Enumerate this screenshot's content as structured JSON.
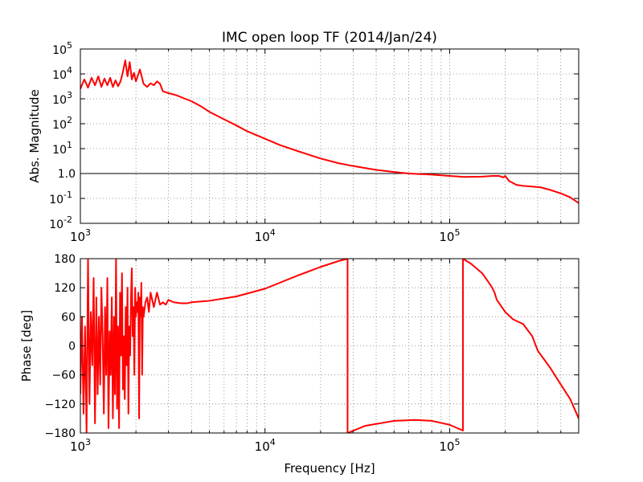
{
  "chart_data": [
    {
      "type": "line",
      "title": "IMC open loop TF (2014/Jan/24)",
      "xlabel": "",
      "ylabel": "Abs. Magnitude",
      "xscale": "log",
      "yscale": "log",
      "xlim": [
        1000,
        500000
      ],
      "ylim": [
        0.01,
        100000
      ],
      "grid": true,
      "xticks": [
        {
          "base": "10",
          "exp": "3"
        },
        {
          "base": "10",
          "exp": "4"
        },
        {
          "base": "10",
          "exp": "5"
        }
      ],
      "yticks": [
        {
          "base": "10",
          "exp": "-2"
        },
        {
          "base": "10",
          "exp": "-1"
        },
        {
          "base": "10",
          "exp": "0",
          "label": "1.0"
        },
        {
          "base": "10",
          "exp": "1"
        },
        {
          "base": "10",
          "exp": "2"
        },
        {
          "base": "10",
          "exp": "3"
        },
        {
          "base": "10",
          "exp": "4"
        },
        {
          "base": "10",
          "exp": "5"
        }
      ],
      "reference_line": {
        "y": 1.0,
        "color": "#000000"
      },
      "series": [
        {
          "color": "#ff0000",
          "x": [
            1000,
            1050,
            1100,
            1150,
            1200,
            1250,
            1300,
            1350,
            1400,
            1450,
            1500,
            1550,
            1600,
            1650,
            1700,
            1750,
            1800,
            1850,
            1900,
            1950,
            2000,
            2100,
            2200,
            2300,
            2400,
            2500,
            2600,
            2700,
            2800,
            3000,
            3300,
            3700,
            4000,
            4500,
            5000,
            6000,
            7000,
            8000,
            10000,
            12000,
            15000,
            20000,
            25000,
            30000,
            40000,
            50000,
            60000,
            70000,
            80000,
            100000,
            120000,
            150000,
            170000,
            185000,
            195000,
            200000,
            210000,
            230000,
            250000,
            280000,
            310000,
            350000,
            400000,
            450000,
            500000
          ],
          "y": [
            2500,
            6000,
            2800,
            7000,
            3500,
            8000,
            3000,
            6500,
            3500,
            7000,
            3000,
            5500,
            3200,
            5000,
            12000,
            35000,
            8000,
            30000,
            6000,
            11000,
            5000,
            15000,
            4000,
            3000,
            4200,
            3500,
            5000,
            4000,
            2000,
            1700,
            1400,
            1000,
            800,
            500,
            300,
            150,
            85,
            50,
            25,
            14,
            8,
            4,
            2.6,
            2,
            1.4,
            1.15,
            1.0,
            0.95,
            0.9,
            0.8,
            0.73,
            0.75,
            0.8,
            0.8,
            0.7,
            0.8,
            0.5,
            0.35,
            0.32,
            0.3,
            0.28,
            0.22,
            0.16,
            0.11,
            0.065
          ]
        }
      ]
    },
    {
      "type": "line",
      "title": "",
      "xlabel": "Frequency [Hz]",
      "ylabel": "Phase [deg]",
      "xscale": "log",
      "yscale": "linear",
      "xlim": [
        1000,
        500000
      ],
      "ylim": [
        -180,
        180
      ],
      "grid": true,
      "xticks": [
        {
          "base": "10",
          "exp": "3"
        },
        {
          "base": "10",
          "exp": "4"
        },
        {
          "base": "10",
          "exp": "5"
        }
      ],
      "yticks": [
        "−180",
        "−120",
        "−60",
        "0",
        "60",
        "120",
        "180"
      ],
      "series": [
        {
          "color": "#ff0000",
          "x": [
            1000,
            1020,
            1040,
            1060,
            1080,
            1100,
            1120,
            1140,
            1160,
            1180,
            1200,
            1220,
            1240,
            1260,
            1280,
            1300,
            1320,
            1340,
            1360,
            1380,
            1400,
            1420,
            1440,
            1460,
            1480,
            1500,
            1520,
            1540,
            1560,
            1580,
            1600,
            1620,
            1640,
            1660,
            1680,
            1700,
            1720,
            1740,
            1760,
            1780,
            1800,
            1820,
            1840,
            1860,
            1880,
            1900,
            1920,
            1940,
            1960,
            1980,
            2000,
            2020,
            2040,
            2060,
            2080,
            2100,
            2120,
            2140,
            2160,
            2180,
            2200,
            2250,
            2300,
            2350,
            2400,
            2500,
            2600,
            2700,
            2800,
            2900,
            3000,
            3200,
            3500,
            3800,
            4000,
            5000,
            7000,
            10000,
            15000,
            20000,
            25000,
            28000,
            28000,
            35000,
            50000,
            65000,
            80000,
            100000,
            118000,
            118000,
            130000,
            150000,
            160000,
            170000,
            175000,
            180000,
            200000,
            220000,
            250000,
            280000,
            300000,
            350000,
            400000,
            450000,
            500000
          ],
          "y": [
            -100,
            60,
            -140,
            40,
            -180,
            180,
            -120,
            70,
            -40,
            140,
            -160,
            100,
            -100,
            60,
            -80,
            120,
            20,
            -140,
            80,
            -60,
            140,
            -170,
            30,
            -60,
            100,
            -150,
            60,
            -100,
            180,
            -130,
            40,
            -170,
            110,
            -20,
            150,
            -90,
            20,
            -110,
            80,
            -40,
            120,
            -140,
            40,
            -20,
            100,
            160,
            20,
            80,
            -60,
            120,
            60,
            90,
            70,
            110,
            -150,
            100,
            60,
            130,
            -60,
            80,
            60,
            90,
            100,
            70,
            110,
            80,
            110,
            85,
            90,
            85,
            95,
            90,
            88,
            88,
            90,
            93,
            102,
            118,
            145,
            163,
            175,
            180,
            -180,
            -165,
            -155,
            -153,
            -155,
            -163,
            -175,
            180,
            170,
            150,
            135,
            120,
            110,
            95,
            70,
            55,
            45,
            20,
            -10,
            -45,
            -80,
            -110,
            -150
          ]
        }
      ]
    }
  ]
}
